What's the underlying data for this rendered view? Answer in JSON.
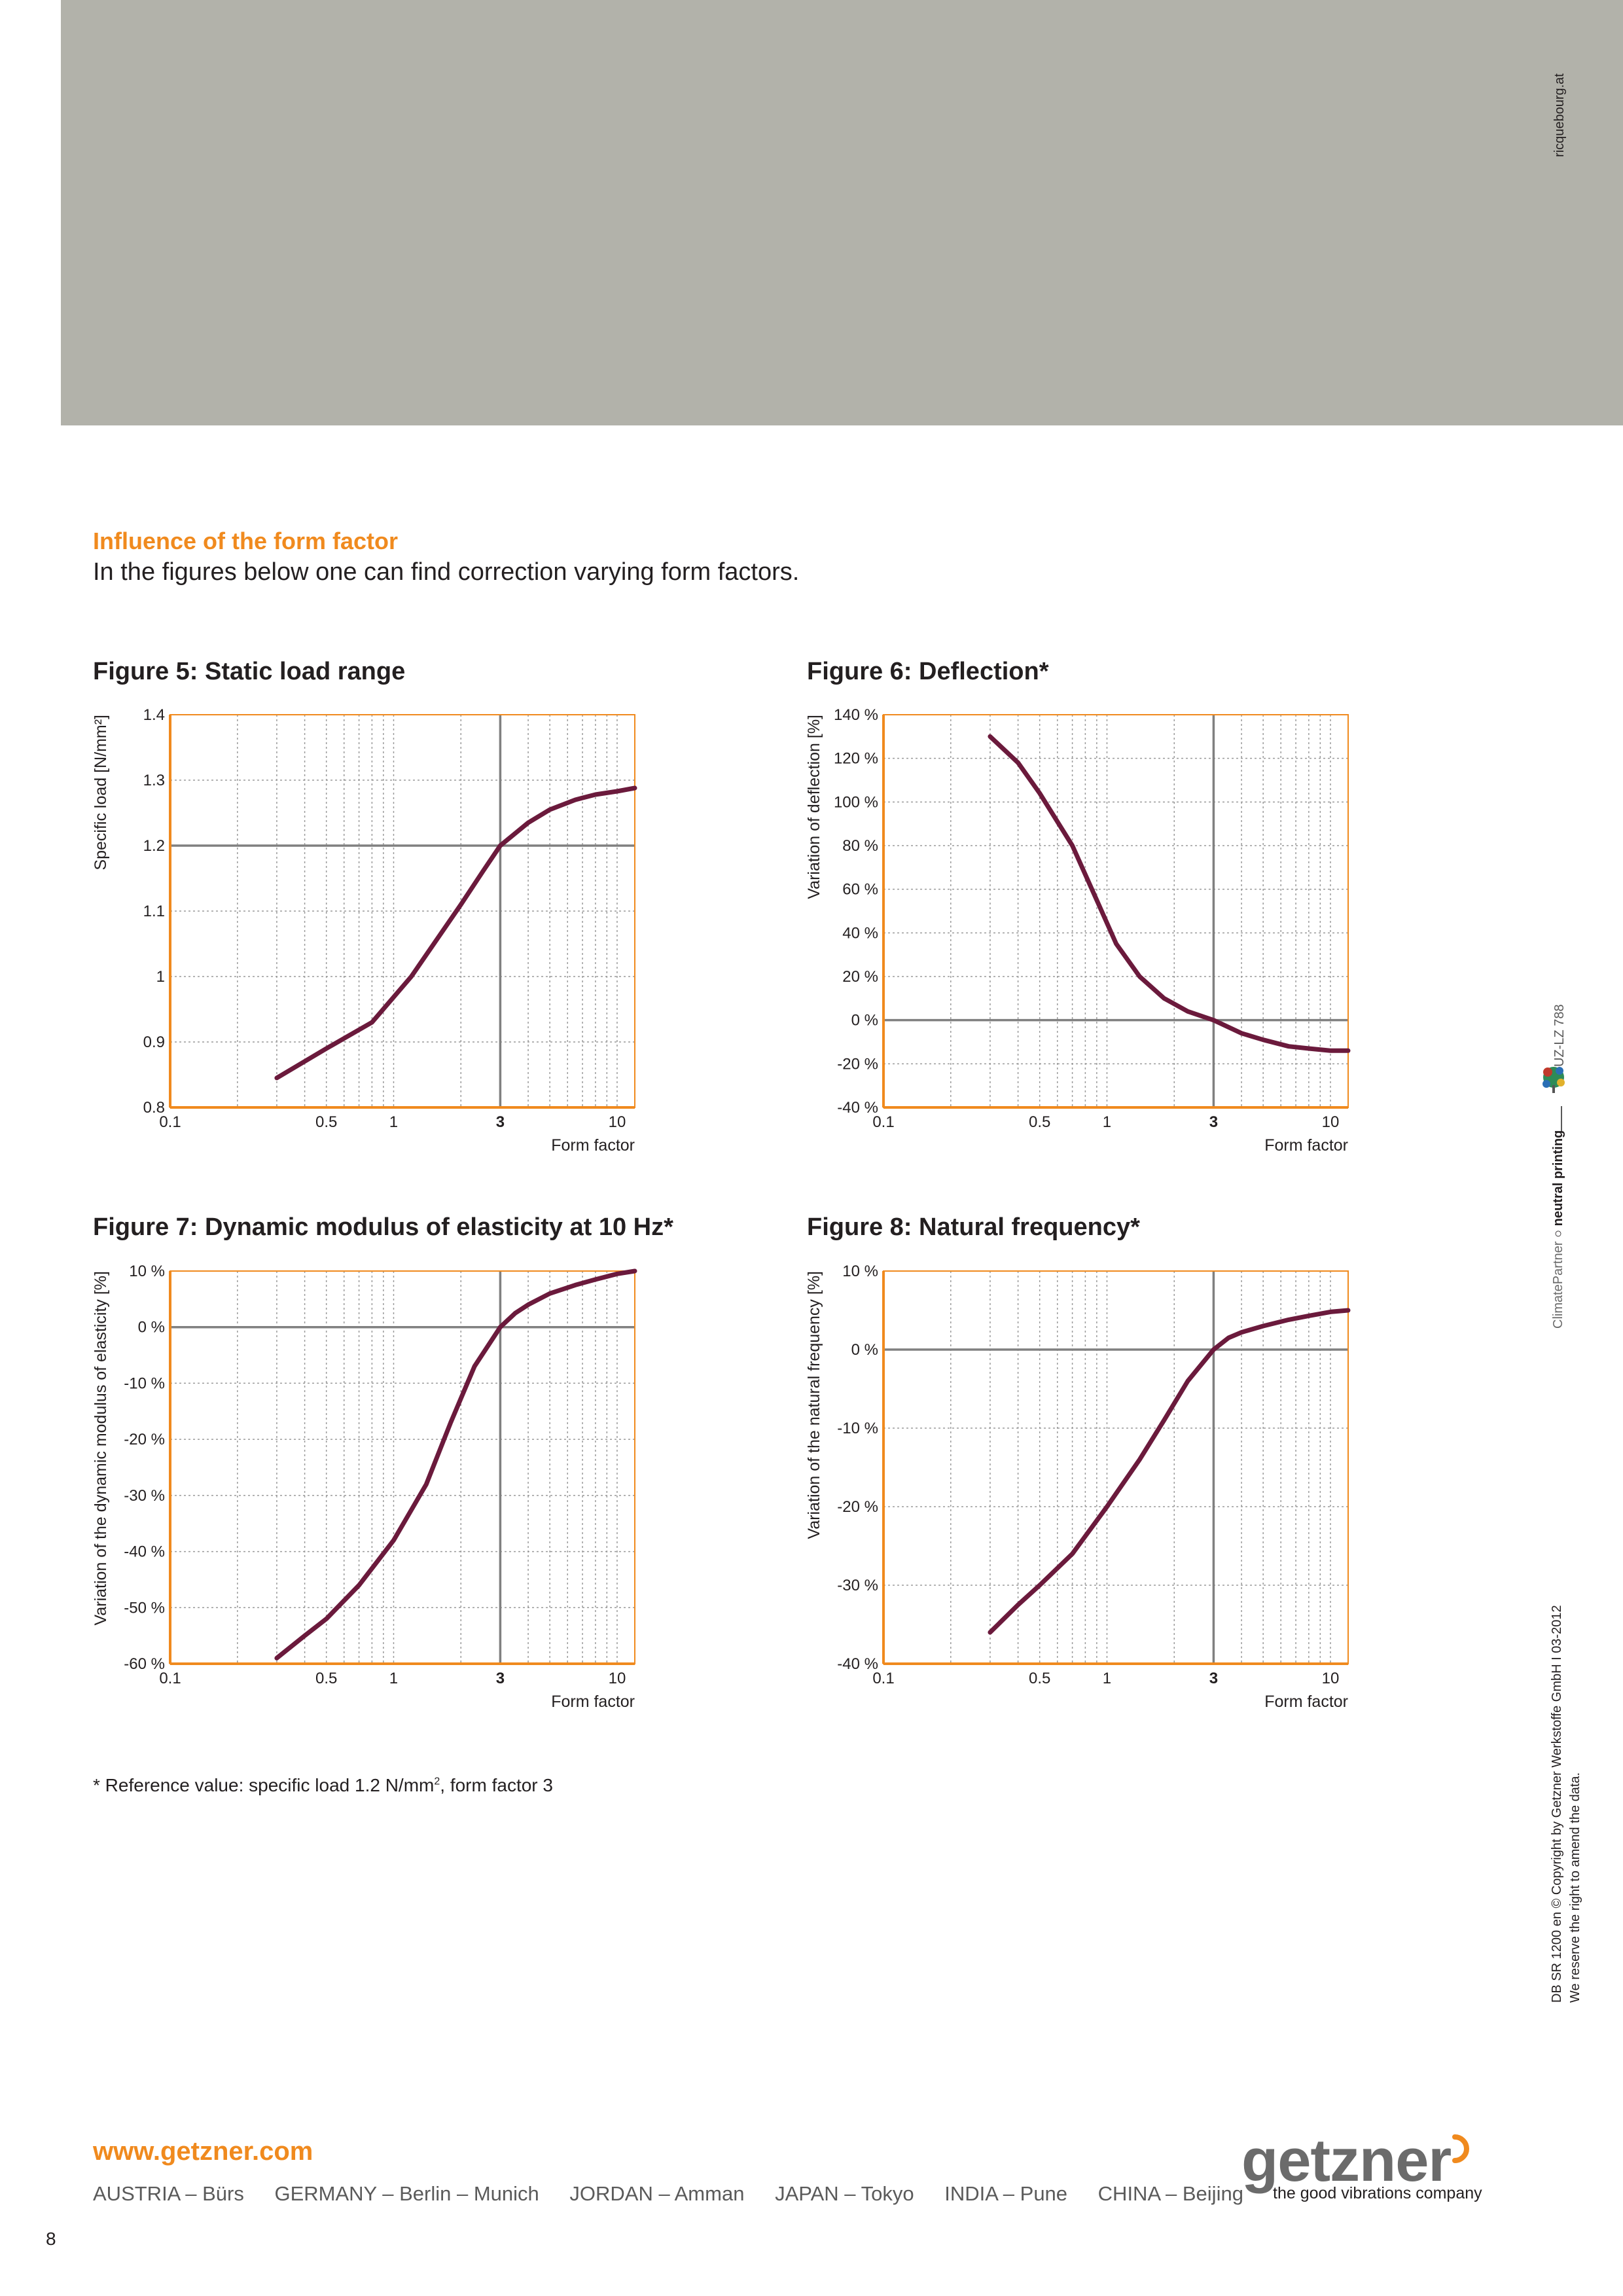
{
  "header": {
    "credit": "ricquebourg.at"
  },
  "section": {
    "heading": "Influence of the form factor",
    "intro": "In the figures below one can find correction varying form factors."
  },
  "figures": {
    "fig5": {
      "title": "Figure 5: Static load range"
    },
    "fig6": {
      "title": "Figure 6: Deflection*"
    },
    "fig7": {
      "title": "Figure 7: Dynamic modulus of elasticity at 10 Hz*"
    },
    "fig8": {
      "title": "Figure 8: Natural frequency*"
    }
  },
  "chart_data": [
    {
      "id": "fig5",
      "type": "line",
      "title": "Figure 5: Static load range",
      "xlabel": "Form factor",
      "ylabel": "Specific load [N/mm²]",
      "xscale": "log",
      "xlim": [
        0.1,
        12
      ],
      "ylim": [
        0.8,
        1.4
      ],
      "xticks": [
        {
          "v": 0.1,
          "label": "0.1"
        },
        {
          "v": 0.5,
          "label": "0.5"
        },
        {
          "v": 1,
          "label": "1"
        },
        {
          "v": 3,
          "label": "3",
          "bold": true
        },
        {
          "v": 10,
          "label": "10"
        }
      ],
      "yticks": [
        {
          "v": 0.8,
          "label": "0.8"
        },
        {
          "v": 0.9,
          "label": "0.9"
        },
        {
          "v": 1.0,
          "label": "1"
        },
        {
          "v": 1.1,
          "label": "1.1"
        },
        {
          "v": 1.2,
          "label": "1.2"
        },
        {
          "v": 1.3,
          "label": "1.3"
        },
        {
          "v": 1.4,
          "label": "1.4"
        }
      ],
      "reference": {
        "x": 3,
        "y": 1.2
      },
      "grid": true,
      "series": [
        {
          "color": "#6b1a3c",
          "x": [
            0.3,
            0.5,
            0.8,
            1.2,
            2.0,
            2.5,
            3.0,
            4.0,
            5.0,
            6.5,
            8.0,
            10.0,
            12.0
          ],
          "y": [
            0.845,
            0.89,
            0.93,
            1.0,
            1.11,
            1.16,
            1.2,
            1.235,
            1.255,
            1.27,
            1.278,
            1.283,
            1.288
          ]
        }
      ]
    },
    {
      "id": "fig6",
      "type": "line",
      "title": "Figure 6: Deflection*",
      "xlabel": "Form factor",
      "ylabel": "Variation of deflection [%]",
      "xscale": "log",
      "xlim": [
        0.1,
        12
      ],
      "ylim": [
        -40,
        140
      ],
      "xticks": [
        {
          "v": 0.1,
          "label": "0.1"
        },
        {
          "v": 0.5,
          "label": "0.5"
        },
        {
          "v": 1,
          "label": "1"
        },
        {
          "v": 3,
          "label": "3",
          "bold": true
        },
        {
          "v": 10,
          "label": "10"
        }
      ],
      "yticks": [
        {
          "v": -40,
          "label": "-40 %"
        },
        {
          "v": -20,
          "label": "-20 %"
        },
        {
          "v": 0,
          "label": "0 %"
        },
        {
          "v": 20,
          "label": "20 %"
        },
        {
          "v": 40,
          "label": "40 %"
        },
        {
          "v": 60,
          "label": "60 %"
        },
        {
          "v": 80,
          "label": "80 %"
        },
        {
          "v": 100,
          "label": "100 %"
        },
        {
          "v": 120,
          "label": "120 %"
        },
        {
          "v": 140,
          "label": "140 %"
        }
      ],
      "reference": {
        "x": 3,
        "y": 0
      },
      "grid": true,
      "series": [
        {
          "color": "#6b1a3c",
          "x": [
            0.3,
            0.4,
            0.5,
            0.7,
            0.9,
            1.1,
            1.4,
            1.8,
            2.3,
            3.0,
            4.0,
            5.0,
            6.5,
            8.0,
            10.0,
            12.0
          ],
          "y": [
            130,
            118,
            104,
            80,
            55,
            35,
            20,
            10,
            4,
            0,
            -6,
            -9,
            -12,
            -13,
            -14,
            -14
          ]
        }
      ]
    },
    {
      "id": "fig7",
      "type": "line",
      "title": "Figure 7: Dynamic modulus of elasticity at 10 Hz*",
      "xlabel": "Form factor",
      "ylabel": "Variation of the dynamic modulus of elasticity [%]",
      "xscale": "log",
      "xlim": [
        0.1,
        12
      ],
      "ylim": [
        -60,
        10
      ],
      "xticks": [
        {
          "v": 0.1,
          "label": "0.1"
        },
        {
          "v": 0.5,
          "label": "0.5"
        },
        {
          "v": 1,
          "label": "1"
        },
        {
          "v": 3,
          "label": "3",
          "bold": true
        },
        {
          "v": 10,
          "label": "10"
        }
      ],
      "yticks": [
        {
          "v": -60,
          "label": "-60 %"
        },
        {
          "v": -50,
          "label": "-50 %"
        },
        {
          "v": -40,
          "label": "-40 %"
        },
        {
          "v": -30,
          "label": "-30 %"
        },
        {
          "v": -20,
          "label": "-20 %"
        },
        {
          "v": -10,
          "label": "-10 %"
        },
        {
          "v": 0,
          "label": "0 %"
        },
        {
          "v": 10,
          "label": "10 %"
        }
      ],
      "reference": {
        "x": 3,
        "y": 0
      },
      "grid": true,
      "series": [
        {
          "color": "#6b1a3c",
          "x": [
            0.3,
            0.4,
            0.5,
            0.7,
            1.0,
            1.4,
            1.8,
            2.3,
            3.0,
            3.5,
            4.0,
            5.0,
            6.5,
            8.0,
            10.0,
            12.0
          ],
          "y": [
            -59,
            -55,
            -52,
            -46,
            -38,
            -28,
            -17,
            -7,
            0,
            2.5,
            4,
            6,
            7.5,
            8.5,
            9.5,
            10
          ]
        }
      ]
    },
    {
      "id": "fig8",
      "type": "line",
      "title": "Figure 8: Natural frequency*",
      "xlabel": "Form factor",
      "ylabel": "Variation of the natural frequency [%]",
      "xscale": "log",
      "xlim": [
        0.1,
        12
      ],
      "ylim": [
        -40,
        10
      ],
      "xticks": [
        {
          "v": 0.1,
          "label": "0.1"
        },
        {
          "v": 0.5,
          "label": "0.5"
        },
        {
          "v": 1,
          "label": "1"
        },
        {
          "v": 3,
          "label": "3",
          "bold": true
        },
        {
          "v": 10,
          "label": "10"
        }
      ],
      "yticks": [
        {
          "v": -40,
          "label": "-40 %"
        },
        {
          "v": -30,
          "label": "-30 %"
        },
        {
          "v": -20,
          "label": "-20 %"
        },
        {
          "v": -10,
          "label": "-10 %"
        },
        {
          "v": 0,
          "label": "0 %"
        },
        {
          "v": 10,
          "label": "10 %"
        }
      ],
      "reference": {
        "x": 3,
        "y": 0
      },
      "grid": true,
      "series": [
        {
          "color": "#6b1a3c",
          "x": [
            0.3,
            0.4,
            0.5,
            0.7,
            1.0,
            1.4,
            1.8,
            2.3,
            3.0,
            3.5,
            4.0,
            5.0,
            6.5,
            8.0,
            10.0,
            12.0
          ],
          "y": [
            -36,
            -32.5,
            -30,
            -26,
            -20,
            -14,
            -9,
            -4,
            0,
            1.5,
            2.2,
            3,
            3.8,
            4.3,
            4.8,
            5
          ]
        }
      ]
    }
  ],
  "footnote": {
    "text": "* Reference value: specific load 1.2 N/mm",
    "sup": "2",
    "tail": ", form factor 3"
  },
  "sidebar": {
    "cert_code": "UZ-LZ 788",
    "climate_partner": "ClimatePartner",
    "neutral_printing": "neutral printing",
    "copyright": "DB SR 1200 en  © Copyright by Getzner Werkstoffe GmbH I 03-2012",
    "reserve": "We reserve the right to amend the data."
  },
  "footer": {
    "website": "www.getzner.com",
    "locations": [
      "AUSTRIA – Bürs",
      "GERMANY – Berlin – Munich",
      "JORDAN – Amman",
      "JAPAN – Tokyo",
      "INDIA – Pune",
      "CHINA – Beijing"
    ],
    "logo_text": "getzner",
    "tagline": "the good vibrations company",
    "page_number": "8"
  },
  "colors": {
    "accent": "#f08a1e",
    "curve": "#6b1a3c",
    "header_band": "#b2b2aa",
    "ref_line": "#808080"
  }
}
